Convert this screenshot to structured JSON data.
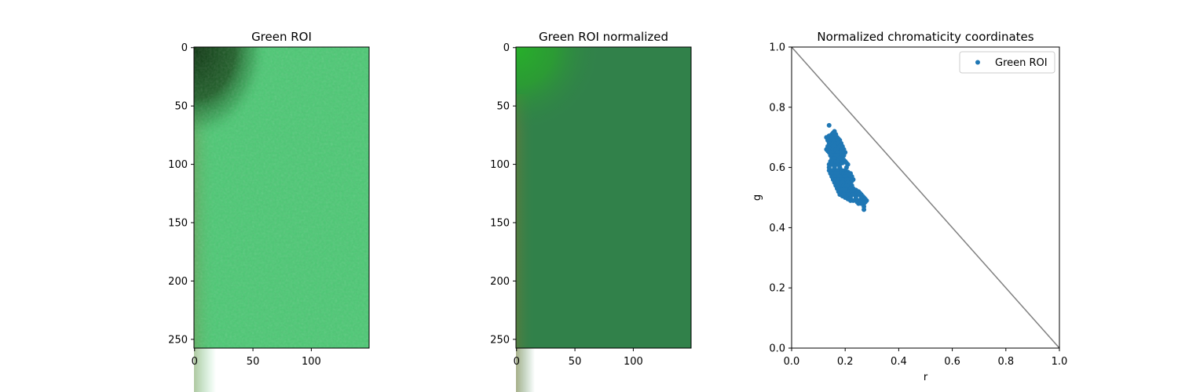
{
  "figure": {
    "panels": [
      {
        "title": "Green ROI",
        "x_ticks": [
          "0",
          "50",
          "100"
        ],
        "y_ticks": [
          "0",
          "50",
          "100",
          "150",
          "200",
          "250"
        ]
      },
      {
        "title": "Green ROI normalized",
        "x_ticks": [
          "0",
          "50",
          "100"
        ],
        "y_ticks": [
          "0",
          "50",
          "100",
          "150",
          "200",
          "250"
        ]
      }
    ],
    "colors": {
      "roi_base": "#4cc874",
      "roi_dark": "#0f3a12",
      "roi_mid": "#2a7a3a",
      "norm_base": "#31814a",
      "norm_bright": "#2aa82d",
      "norm_left_tint": "#5f7a3e",
      "scatter": "#1f77b4",
      "diagonal": "#808080"
    }
  },
  "chart_data": [
    {
      "type": "image",
      "title": "Green ROI",
      "image_extent": {
        "width": 150,
        "height": 258
      },
      "x_ticks": [
        0,
        50,
        100
      ],
      "y_ticks": [
        0,
        50,
        100,
        150,
        200,
        250
      ]
    },
    {
      "type": "image",
      "title": "Green ROI normalized",
      "image_extent": {
        "width": 150,
        "height": 258
      },
      "x_ticks": [
        0,
        50,
        100
      ],
      "y_ticks": [
        0,
        50,
        100,
        150,
        200,
        250
      ]
    },
    {
      "type": "scatter",
      "title": "Normalized chromaticity coordinates",
      "xlabel": "r",
      "ylabel": "g",
      "xlim": [
        0,
        1
      ],
      "ylim": [
        0,
        1
      ],
      "x_ticks": [
        "0.0",
        "0.2",
        "0.4",
        "0.6",
        "0.8",
        "1.0"
      ],
      "y_ticks": [
        "0.0",
        "0.2",
        "0.4",
        "0.6",
        "0.8",
        "1.0"
      ],
      "legend": {
        "position": "top-right"
      },
      "reference_line": {
        "x": [
          0,
          1
        ],
        "y": [
          1,
          0
        ]
      },
      "series": [
        {
          "name": "Green ROI",
          "marker": "dot",
          "points": [
            [
              0.14,
              0.74
            ],
            [
              0.13,
              0.7
            ],
            [
              0.15,
              0.71
            ],
            [
              0.16,
              0.72
            ],
            [
              0.17,
              0.7
            ],
            [
              0.14,
              0.68
            ],
            [
              0.15,
              0.69
            ],
            [
              0.16,
              0.69
            ],
            [
              0.18,
              0.69
            ],
            [
              0.13,
              0.66
            ],
            [
              0.15,
              0.67
            ],
            [
              0.17,
              0.67
            ],
            [
              0.19,
              0.67
            ],
            [
              0.14,
              0.65
            ],
            [
              0.16,
              0.65
            ],
            [
              0.18,
              0.65
            ],
            [
              0.2,
              0.65
            ],
            [
              0.15,
              0.63
            ],
            [
              0.17,
              0.63
            ],
            [
              0.19,
              0.63
            ],
            [
              0.2,
              0.62
            ],
            [
              0.14,
              0.61
            ],
            [
              0.16,
              0.61
            ],
            [
              0.18,
              0.61
            ],
            [
              0.21,
              0.61
            ],
            [
              0.14,
              0.59
            ],
            [
              0.16,
              0.59
            ],
            [
              0.18,
              0.59
            ],
            [
              0.2,
              0.59
            ],
            [
              0.22,
              0.58
            ],
            [
              0.15,
              0.57
            ],
            [
              0.17,
              0.57
            ],
            [
              0.19,
              0.57
            ],
            [
              0.21,
              0.57
            ],
            [
              0.23,
              0.56
            ],
            [
              0.16,
              0.55
            ],
            [
              0.18,
              0.55
            ],
            [
              0.2,
              0.55
            ],
            [
              0.22,
              0.55
            ],
            [
              0.17,
              0.53
            ],
            [
              0.19,
              0.53
            ],
            [
              0.21,
              0.53
            ],
            [
              0.23,
              0.53
            ],
            [
              0.25,
              0.52
            ],
            [
              0.18,
              0.51
            ],
            [
              0.2,
              0.51
            ],
            [
              0.22,
              0.51
            ],
            [
              0.24,
              0.51
            ],
            [
              0.26,
              0.51
            ],
            [
              0.27,
              0.5
            ],
            [
              0.2,
              0.5
            ],
            [
              0.22,
              0.49
            ],
            [
              0.24,
              0.49
            ],
            [
              0.26,
              0.49
            ],
            [
              0.28,
              0.49
            ],
            [
              0.25,
              0.48
            ],
            [
              0.27,
              0.48
            ],
            [
              0.27,
              0.46
            ],
            [
              0.19,
              0.52
            ],
            [
              0.21,
              0.5
            ]
          ]
        }
      ]
    }
  ]
}
